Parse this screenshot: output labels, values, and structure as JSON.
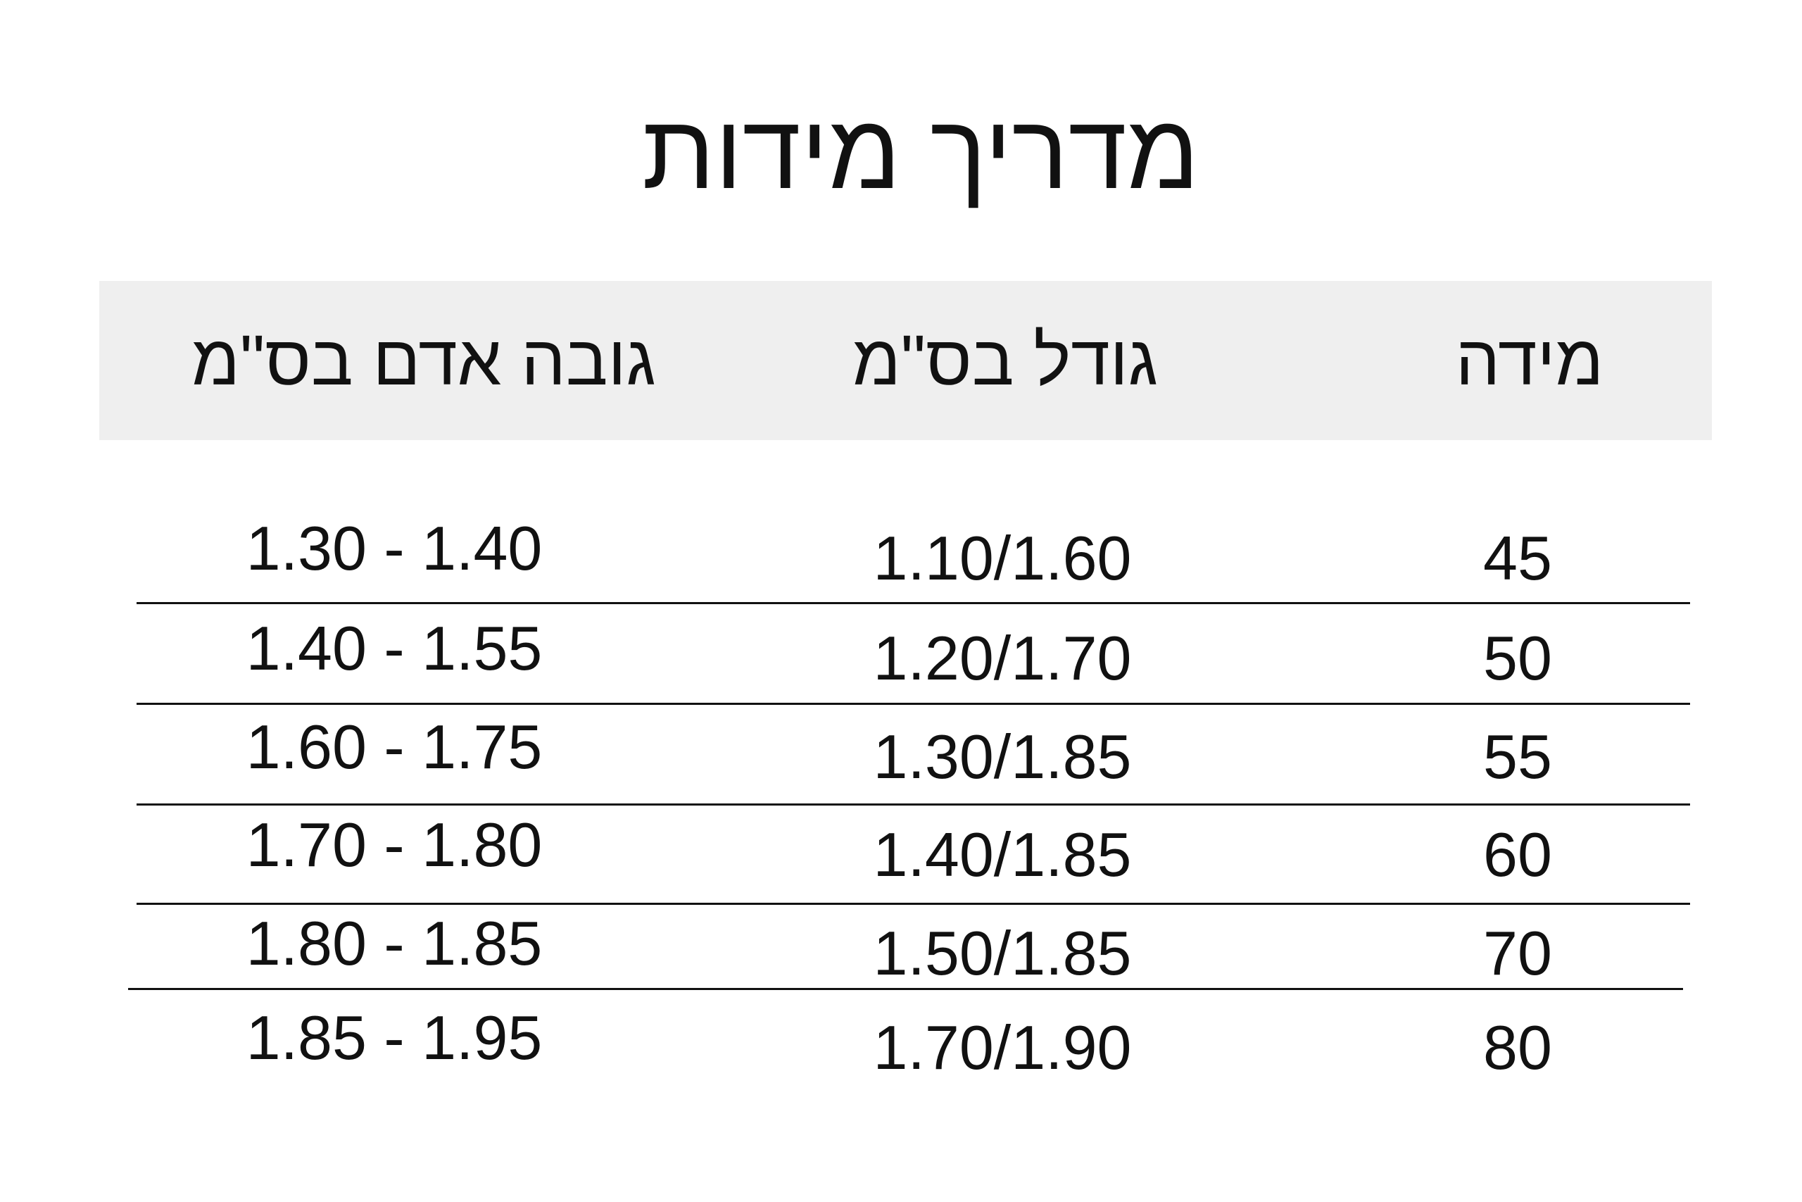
{
  "title": "מדריך מידות",
  "table": {
    "headers": [
      "מידה",
      "גודל בס\"מ",
      "גובה אדם בס\"מ"
    ],
    "rows": [
      [
        "45",
        "1.10/1.60",
        "1.30 - 1.40"
      ],
      [
        "50",
        "1.20/1.70",
        "1.40 - 1.55"
      ],
      [
        "55",
        "1.30/1.85",
        "1.60 - 1.75"
      ],
      [
        "60",
        "1.40/1.85",
        "1.70 - 1.80"
      ],
      [
        "70",
        "1.50/1.85",
        "1.80 - 1.85"
      ],
      [
        "80",
        "1.70/1.90",
        "1.85 - 1.95"
      ]
    ]
  },
  "colors": {
    "header_background": "#efefef",
    "text": "#111111",
    "divider": "#111111"
  }
}
